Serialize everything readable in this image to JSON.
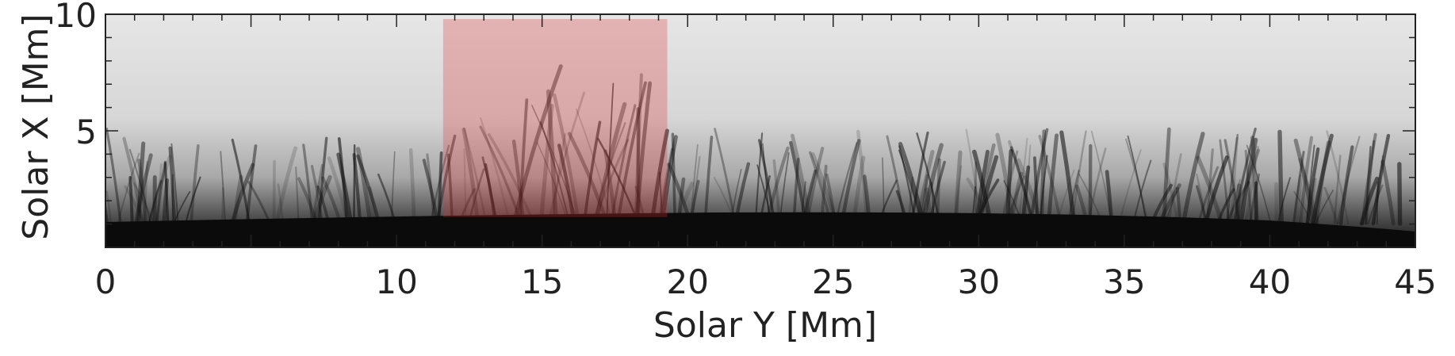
{
  "figure": {
    "xlabel": "Solar Y [Mm]",
    "ylabel": "Solar X [Mm]",
    "xlim": [
      0,
      45
    ],
    "ylim": [
      0,
      10
    ],
    "x_ticks": [
      0,
      10,
      15,
      20,
      25,
      30,
      35,
      40,
      45
    ],
    "x_tick_labels": [
      "0",
      "10",
      "15",
      "20",
      "25",
      "30",
      "35",
      "40",
      "45"
    ],
    "y_ticks": [
      5,
      10
    ],
    "y_tick_labels": [
      "5",
      "10"
    ],
    "highlight": {
      "x_start": 11.6,
      "x_end": 19.3,
      "y_start": 1.3,
      "y_end": 10,
      "color": "#e03030"
    },
    "colors": {
      "sky": "#dcdcdc",
      "limb": "#0b0b0b",
      "frame": "#222222"
    }
  }
}
